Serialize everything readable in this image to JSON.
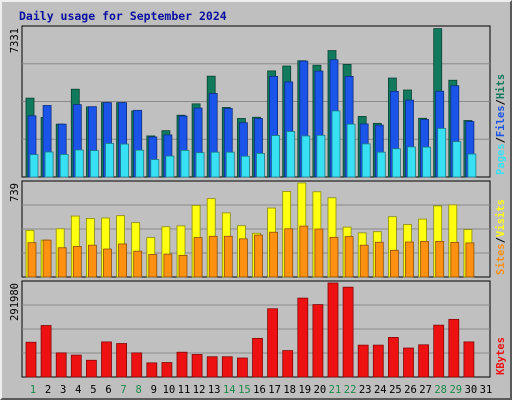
{
  "chart_data": {
    "type": "bar",
    "title": "Daily usage for September 2024",
    "categories": [
      "1",
      "2",
      "3",
      "4",
      "5",
      "6",
      "7",
      "8",
      "9",
      "10",
      "11",
      "12",
      "13",
      "14",
      "15",
      "16",
      "17",
      "18",
      "19",
      "20",
      "21",
      "22",
      "23",
      "24",
      "25",
      "26",
      "27",
      "28",
      "29",
      "30",
      "31"
    ],
    "weekend_days": [
      "1",
      "7",
      "8",
      "14",
      "15",
      "21",
      "22",
      "28",
      "29"
    ],
    "panels": [
      {
        "id": "requests",
        "ylim": [
          0,
          7331
        ],
        "max_label": "7331",
        "side_label": [
          "Pages",
          "Files",
          "Hits"
        ],
        "series": [
          {
            "name": "Hits",
            "color": "#117a5c",
            "values": [
              3880,
              2930,
              2600,
              4320,
              3450,
              3660,
              3660,
              3250,
              2020,
              2280,
              3040,
              3600,
              4960,
              3420,
              2880,
              2940,
              5220,
              5460,
              5720,
              5500,
              6220,
              5540,
              2980,
              2640,
              4870,
              4280,
              2890,
              7300,
              4760,
              2780,
              0
            ]
          },
          {
            "name": "Files",
            "color": "#1a54e8",
            "values": [
              3010,
              3520,
              2600,
              3560,
              3460,
              3660,
              3660,
              3280,
              1970,
              2070,
              3000,
              3390,
              4110,
              3370,
              2670,
              2880,
              4950,
              4680,
              5700,
              5210,
              5770,
              4950,
              2610,
              2550,
              4210,
              3780,
              2830,
              4220,
              4490,
              2730,
              0
            ]
          },
          {
            "name": "Pages",
            "color": "#38e0f4",
            "values": [
              1100,
              1230,
              1110,
              1330,
              1300,
              1650,
              1620,
              1320,
              860,
              1030,
              1310,
              1200,
              1220,
              1220,
              1020,
              1160,
              2040,
              2240,
              2020,
              2050,
              3250,
              2600,
              1630,
              1220,
              1390,
              1480,
              1470,
              2390,
              1740,
              1130,
              0
            ]
          }
        ]
      },
      {
        "id": "visitors",
        "ylim": [
          0,
          739
        ],
        "max_label": "739",
        "side_label": [
          "Sites",
          "Visits"
        ],
        "series": [
          {
            "name": "Visits",
            "color": "#ffff10",
            "values": [
              367,
              290,
              379,
              479,
              460,
              464,
              482,
              428,
              310,
              395,
              402,
              563,
              616,
              504,
              403,
              344,
              542,
              672,
              739,
              670,
              623,
              392,
              347,
              356,
              474,
              413,
              455,
              559,
              567,
              373,
              0
            ]
          },
          {
            "name": "Sites",
            "color": "#ff9010",
            "values": [
              270,
              290,
              230,
              240,
              250,
              220,
              260,
              203,
              177,
              180,
              170,
              310,
              320,
              320,
              300,
              330,
              352,
              379,
              400,
              377,
              312,
              318,
              250,
              273,
              210,
              275,
              280,
              280,
              272,
              268,
              0
            ]
          }
        ]
      },
      {
        "id": "volume",
        "ylim": [
          0,
          291980
        ],
        "max_label": "291980",
        "side_label": [
          "KBytes"
        ],
        "series": [
          {
            "name": "KBytes",
            "color": "#ee1111",
            "values": [
              108000,
              160000,
              75000,
              68000,
              52000,
              109000,
              104000,
              75000,
              44000,
              45000,
              77000,
              70000,
              63000,
              63000,
              59000,
              120000,
              212000,
              82000,
              245000,
              225000,
              292000,
              279000,
              99000,
              99000,
              123000,
              90000,
              100000,
              161000,
              179000,
              109000,
              0
            ]
          }
        ]
      }
    ]
  }
}
